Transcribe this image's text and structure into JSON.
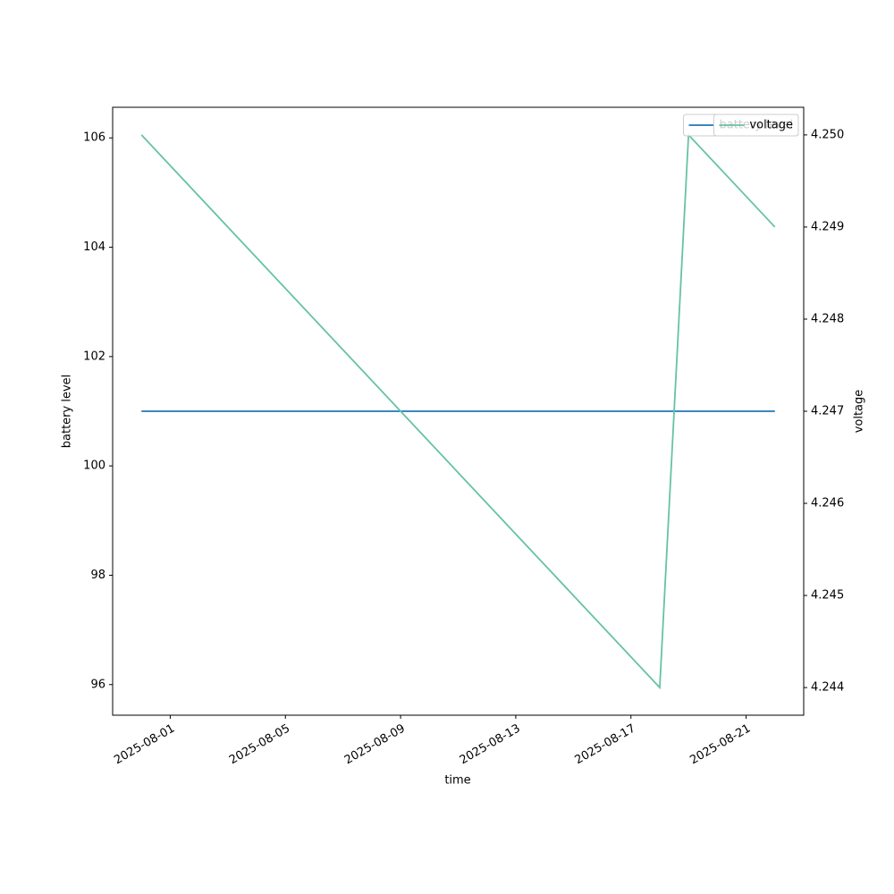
{
  "chart_data": {
    "type": "line",
    "x": [
      "2025-07-31",
      "2025-08-18",
      "2025-08-19",
      "2025-08-22"
    ],
    "series": [
      {
        "name": "battery level",
        "color": "#1f77b4",
        "values": [
          101,
          101,
          101,
          101
        ]
      },
      {
        "name": "voltage",
        "color": "#66c2a5",
        "axis": "y2",
        "values": [
          4.25,
          4.244,
          4.25,
          4.249
        ]
      }
    ],
    "xlabel": "time",
    "ylabel": "battery level",
    "y2label": "voltage",
    "xlim": [
      "2025-07-30",
      "2025-08-23"
    ],
    "xticks": [
      "2025-08-01",
      "2025-08-05",
      "2025-08-09",
      "2025-08-13",
      "2025-08-17",
      "2025-08-21"
    ],
    "ylim": [
      95.44,
      106.56
    ],
    "yticks": [
      96,
      98,
      100,
      102,
      104,
      106
    ],
    "y2lim": [
      4.2437,
      4.2503
    ],
    "y2ticks": [
      {
        "value": 4.244,
        "label": "4.244"
      },
      {
        "value": 4.245,
        "label": "4.245"
      },
      {
        "value": 4.246,
        "label": "4.246"
      },
      {
        "value": 4.247,
        "label": "4.247"
      },
      {
        "value": 4.248,
        "label": "4.248"
      },
      {
        "value": 4.249,
        "label": "4.249"
      },
      {
        "value": 4.25,
        "label": "4.250"
      }
    ],
    "legend": "upper right"
  }
}
